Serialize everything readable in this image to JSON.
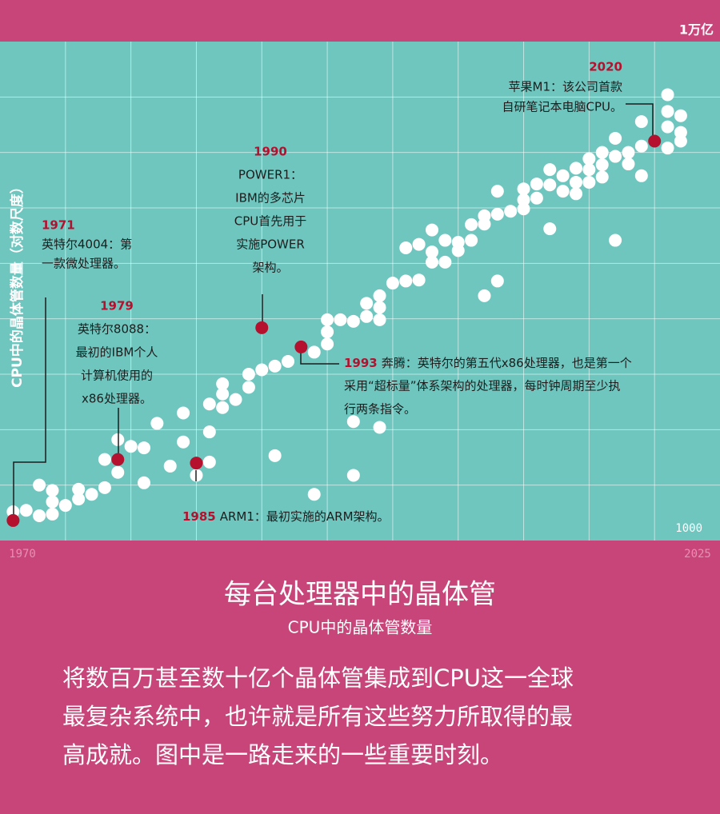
{
  "chart_data": {
    "type": "scatter",
    "title": "每台处理器中的晶体管",
    "subtitle": "CPU中的晶体管数量",
    "y_label": "CPU中的晶体管数量（对数尺度）",
    "description": [
      "将数百万甚至数十亿个晶体管集成到CPU这一全球",
      "最复杂系统中，也许就是所有这些努力所取得的最",
      "高成就。图中是一路走来的一些重要时刻。"
    ],
    "log_scale_y": true,
    "grid": true,
    "color": "#ffffff",
    "annotation_color": "#b5112e",
    "xlim": [
      1970,
      2025
    ],
    "xticks": [
      1970,
      {
        "value": 1975,
        "label": null
      },
      {
        "value": 1980,
        "label": null
      },
      {
        "value": 1985,
        "label": null
      },
      {
        "value": 1990,
        "label": null
      },
      {
        "value": 1995,
        "label": null
      },
      {
        "value": 2000,
        "label": null
      },
      {
        "value": 2005,
        "label": null
      },
      {
        "value": 2010,
        "label": null
      },
      {
        "value": 2015,
        "label": null
      },
      {
        "value": 2020,
        "label": null
      },
      2025
    ],
    "ylim": [
      1000,
      1000000000000
    ],
    "yticks": [
      1000,
      {
        "value": 10000,
        "label": null
      },
      {
        "value": 100000,
        "label": null
      },
      {
        "value": 1000000,
        "label": null
      },
      {
        "value": 10000000,
        "label": null
      },
      {
        "value": 100000000,
        "label": null
      },
      {
        "value": 1000000000,
        "label": null
      },
      {
        "value": 10000000000,
        "label": null
      },
      {
        "value": 100000000000,
        "label": null
      },
      {
        "value": 1000000000000,
        "label": "1万亿"
      }
    ],
    "x": [
      1971,
      1972,
      1973,
      1973,
      1974,
      1974,
      1974,
      1975,
      1976,
      1976,
      1977,
      1978,
      1978,
      1979,
      1979,
      1980,
      1981,
      1981,
      1982,
      1983,
      1984,
      1984,
      1985,
      1986,
      1986,
      1986,
      1987,
      1987,
      1987,
      1988,
      1989,
      1989,
      1990,
      1991,
      1991,
      1992,
      1994,
      1994,
      1995,
      1995,
      1995,
      1996,
      1997,
      1997,
      1997,
      1998,
      1998,
      1999,
      1999,
      1999,
      1999,
      2000,
      2001,
      2001,
      2002,
      2002,
      2003,
      2003,
      2003,
      2004,
      2004,
      2005,
      2005,
      2006,
      2006,
      2007,
      2007,
      2007,
      2008,
      2008,
      2008,
      2009,
      2010,
      2010,
      2010,
      2011,
      2011,
      2012,
      2012,
      2012,
      2013,
      2013,
      2014,
      2014,
      2014,
      2015,
      2015,
      2015,
      2016,
      2016,
      2016,
      2017,
      2017,
      2017,
      2018,
      2018,
      2019,
      2019,
      2019,
      2021,
      2021,
      2021,
      2021,
      2022,
      2022,
      2022
    ],
    "values": [
      3300,
      3500,
      10000,
      2800,
      8000,
      5000,
      3000,
      4300,
      8400,
      5600,
      6800,
      29000,
      9000,
      66000,
      17000,
      50000,
      47000,
      11000,
      130000,
      22000,
      200000,
      60000,
      15000,
      290000,
      91000,
      26000,
      670000,
      440000,
      250000,
      350000,
      1000000,
      580000,
      1200000,
      1400000,
      34000,
      1700000,
      2500000,
      6800,
      9600000,
      5800000,
      3500000,
      9600000,
      9000000,
      140000,
      15000,
      19000000,
      11000000,
      26000000,
      16000000,
      9600000,
      110000,
      44000000,
      48000000,
      190000000,
      220000000,
      50000000,
      400000000,
      160000000,
      105000000,
      260000000,
      105000000,
      240000000,
      170000000,
      500000000,
      260000000,
      720000000,
      510000000,
      26000000,
      2000000000,
      770000000,
      48000000,
      870000000,
      2200000000,
      1400000000,
      960000000,
      2700000000,
      1500000000,
      4900000000,
      2600000000,
      420000000,
      3800000000,
      2000000000,
      5200000000,
      2900000000,
      1800000000,
      7700000000,
      4900000000,
      2900000000,
      10000000000,
      6000000000,
      3600000000,
      18000000000,
      8500000000,
      260000000,
      10000000000,
      6200000000,
      36000000000,
      13000000000,
      3800000000,
      110000000000,
      55000000000,
      29000000000,
      12000000000,
      46000000000,
      23000000000,
      16000000000
    ],
    "annotations": [
      {
        "x": 1971,
        "y": 2300,
        "lines": [
          "英特尔4004：第",
          "一款微处理器。"
        ]
      },
      {
        "x": 1979,
        "y": 29000,
        "lines": [
          "英特尔8088：",
          "最初的IBM个人",
          "计算机使用的",
          "x86处理器。"
        ]
      },
      {
        "x": 1985,
        "y": 25000,
        "lines": [
          "ARM1：最初实施的ARM架构。"
        ]
      },
      {
        "x": 1990,
        "y": 6900000,
        "lines": [
          "POWER1：",
          "IBM的多芯片",
          "CPU首先用于",
          "实施POWER",
          "架构。"
        ]
      },
      {
        "x": 1993,
        "y": 3100000,
        "lines": [
          "奔腾：英特尔的第五代x86处理器，也是第一个",
          "采用“超标量”体系架构的处理器，每时钟周期至少执",
          "行两条指令。"
        ]
      },
      {
        "x": 2020,
        "y": 16000000000,
        "lines": [
          "苹果M1：该公司首款",
          "自研笔记本电脑CPU。"
        ]
      }
    ]
  }
}
